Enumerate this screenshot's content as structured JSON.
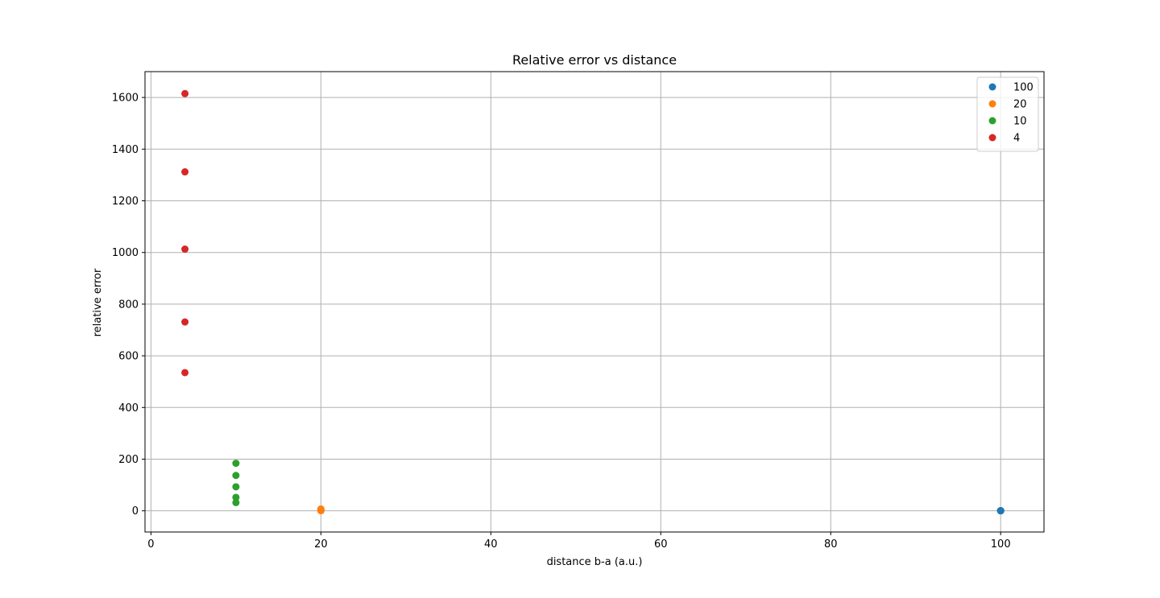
{
  "chart_data": {
    "type": "scatter",
    "title": "Relative error vs distance",
    "xlabel": "distance b-a (a.u.)",
    "ylabel": "relative error",
    "xlim": [
      -0.7,
      105.1
    ],
    "ylim": [
      -82,
      1700
    ],
    "xticks": [
      0,
      20,
      40,
      60,
      80,
      100
    ],
    "yticks": [
      0,
      200,
      400,
      600,
      800,
      1000,
      1200,
      1400,
      1600
    ],
    "grid": true,
    "legend_position": "top-right",
    "series": [
      {
        "name": "100",
        "color": "#1f77b4",
        "x": [
          100,
          100,
          100,
          100,
          100
        ],
        "y": [
          0.1,
          0.2,
          0.3,
          0.4,
          0.5
        ]
      },
      {
        "name": "20",
        "color": "#ff7f0e",
        "x": [
          20,
          20,
          20,
          20,
          20
        ],
        "y": [
          0.5,
          1.5,
          3,
          5,
          7
        ]
      },
      {
        "name": "10",
        "color": "#2ca02c",
        "x": [
          10,
          10,
          10,
          10,
          10
        ],
        "y": [
          32,
          52,
          93,
          137,
          184
        ]
      },
      {
        "name": "4",
        "color": "#d62728",
        "x": [
          4,
          4,
          4,
          4,
          4
        ],
        "y": [
          535,
          731,
          1013,
          1312,
          1615
        ]
      }
    ]
  }
}
